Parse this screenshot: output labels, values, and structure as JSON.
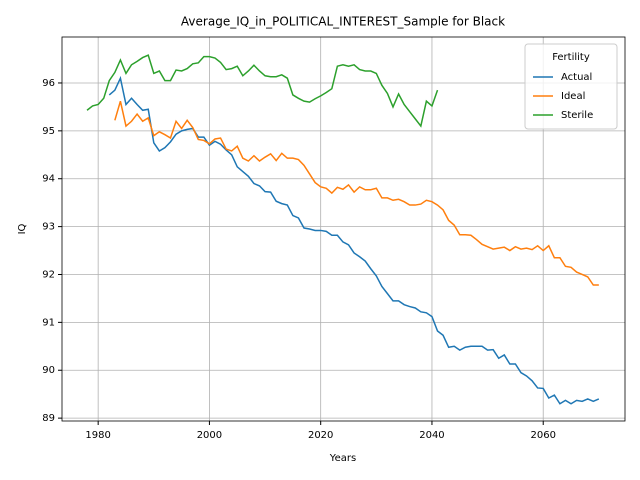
{
  "chart_data": {
    "type": "line",
    "title": "Average_IQ_in_POLITICAL_INTEREST_Sample for Black",
    "x_label": "Years",
    "y_label": "IQ",
    "x": [
      1978,
      1979,
      1980,
      1981,
      1982,
      1983,
      1984,
      1985,
      1986,
      1987,
      1988,
      1989,
      1990,
      1991,
      1992,
      1993,
      1994,
      1995,
      1996,
      1997,
      1998,
      1999,
      2000,
      2001,
      2002,
      2003,
      2004,
      2005,
      2006,
      2007,
      2008,
      2009,
      2010,
      2011,
      2012,
      2013,
      2014,
      2015,
      2016,
      2017,
      2018,
      2019,
      2020,
      2021,
      2022,
      2023,
      2024,
      2025,
      2026,
      2027,
      2028,
      2029,
      2030,
      2031,
      2032,
      2033,
      2034,
      2035,
      2036,
      2037,
      2038,
      2039,
      2040,
      2041,
      2042,
      2043,
      2044,
      2045,
      2046,
      2047,
      2048,
      2049,
      2050,
      2051,
      2052,
      2053,
      2054,
      2055,
      2056,
      2057,
      2058,
      2059,
      2060,
      2061,
      2062,
      2063,
      2064,
      2065,
      2066,
      2067,
      2068,
      2069,
      2070
    ],
    "series": [
      {
        "name": "Actual",
        "color": "#1f77b4",
        "values": [
          null,
          null,
          null,
          null,
          95.75,
          95.85,
          96.1,
          95.55,
          95.68,
          95.55,
          95.43,
          95.45,
          94.75,
          94.58,
          94.65,
          94.77,
          94.93,
          95.0,
          95.03,
          95.05,
          94.87,
          94.87,
          94.7,
          94.78,
          94.72,
          94.6,
          94.5,
          94.25,
          94.15,
          94.05,
          93.9,
          93.85,
          93.73,
          93.72,
          93.53,
          93.48,
          93.45,
          93.23,
          93.18,
          92.97,
          92.95,
          92.92,
          92.92,
          92.9,
          92.82,
          92.82,
          92.68,
          92.62,
          92.45,
          92.37,
          92.28,
          92.12,
          91.97,
          91.75,
          91.6,
          91.45,
          91.45,
          91.37,
          91.33,
          91.3,
          91.22,
          91.2,
          91.12,
          90.82,
          90.73,
          90.48,
          90.5,
          90.42,
          90.48,
          90.5,
          90.5,
          90.5,
          90.42,
          90.43,
          90.25,
          90.32,
          90.13,
          90.13,
          89.95,
          89.88,
          89.78,
          89.63,
          89.62,
          89.42,
          89.48,
          89.3,
          89.37,
          89.3,
          89.37,
          89.35,
          89.4,
          89.35,
          89.4
        ]
      },
      {
        "name": "Ideal",
        "color": "#ff7f0e",
        "values": [
          null,
          null,
          null,
          null,
          null,
          95.22,
          95.62,
          95.1,
          95.2,
          95.35,
          95.2,
          95.27,
          94.9,
          94.98,
          94.92,
          94.85,
          95.2,
          95.05,
          95.22,
          95.07,
          94.82,
          94.8,
          94.73,
          94.83,
          94.85,
          94.62,
          94.58,
          94.68,
          94.43,
          94.37,
          94.48,
          94.37,
          94.45,
          94.52,
          94.38,
          94.53,
          94.43,
          94.43,
          94.4,
          94.28,
          94.1,
          93.92,
          93.83,
          93.8,
          93.7,
          93.82,
          93.78,
          93.87,
          93.72,
          93.83,
          93.77,
          93.77,
          93.8,
          93.6,
          93.6,
          93.55,
          93.57,
          93.52,
          93.45,
          93.45,
          93.47,
          93.55,
          93.52,
          93.45,
          93.35,
          93.13,
          93.03,
          92.83,
          92.83,
          92.82,
          92.73,
          92.63,
          92.58,
          92.53,
          92.55,
          92.57,
          92.5,
          92.58,
          92.53,
          92.55,
          92.52,
          92.6,
          92.5,
          92.6,
          92.35,
          92.35,
          92.17,
          92.15,
          92.05,
          92.0,
          91.95,
          91.78,
          91.78
        ]
      },
      {
        "name": "Sterile",
        "color": "#2ca02c",
        "values": [
          95.43,
          95.52,
          95.55,
          95.68,
          96.05,
          96.22,
          96.48,
          96.2,
          96.38,
          96.45,
          96.53,
          96.58,
          96.2,
          96.25,
          96.05,
          96.05,
          96.27,
          96.25,
          96.3,
          96.4,
          96.42,
          96.55,
          96.55,
          96.52,
          96.43,
          96.28,
          96.3,
          96.35,
          96.15,
          96.25,
          96.37,
          96.25,
          96.15,
          96.13,
          96.13,
          96.17,
          96.1,
          95.75,
          95.68,
          95.62,
          95.6,
          95.67,
          95.73,
          95.8,
          95.88,
          96.35,
          96.38,
          96.35,
          96.38,
          96.28,
          96.25,
          96.25,
          96.2,
          95.95,
          95.78,
          95.5,
          95.77,
          95.55,
          95.4,
          95.25,
          95.1,
          95.62,
          95.52,
          95.85,
          null,
          null,
          null,
          null,
          null,
          null,
          null,
          null,
          null,
          null,
          null,
          null,
          null,
          null,
          null,
          null,
          null,
          null,
          null,
          null,
          null,
          null,
          null,
          null,
          null,
          null,
          null,
          null,
          null
        ]
      }
    ],
    "xlim": [
      1973.5,
      2074.7
    ],
    "ylim": [
      88.94,
      96.96
    ],
    "xticks": [
      1980,
      2000,
      2020,
      2040,
      2060
    ],
    "yticks": [
      89,
      90,
      91,
      92,
      93,
      94,
      95,
      96
    ],
    "grid": true,
    "legend_title": "Fertility",
    "legend_position": "upper right"
  }
}
